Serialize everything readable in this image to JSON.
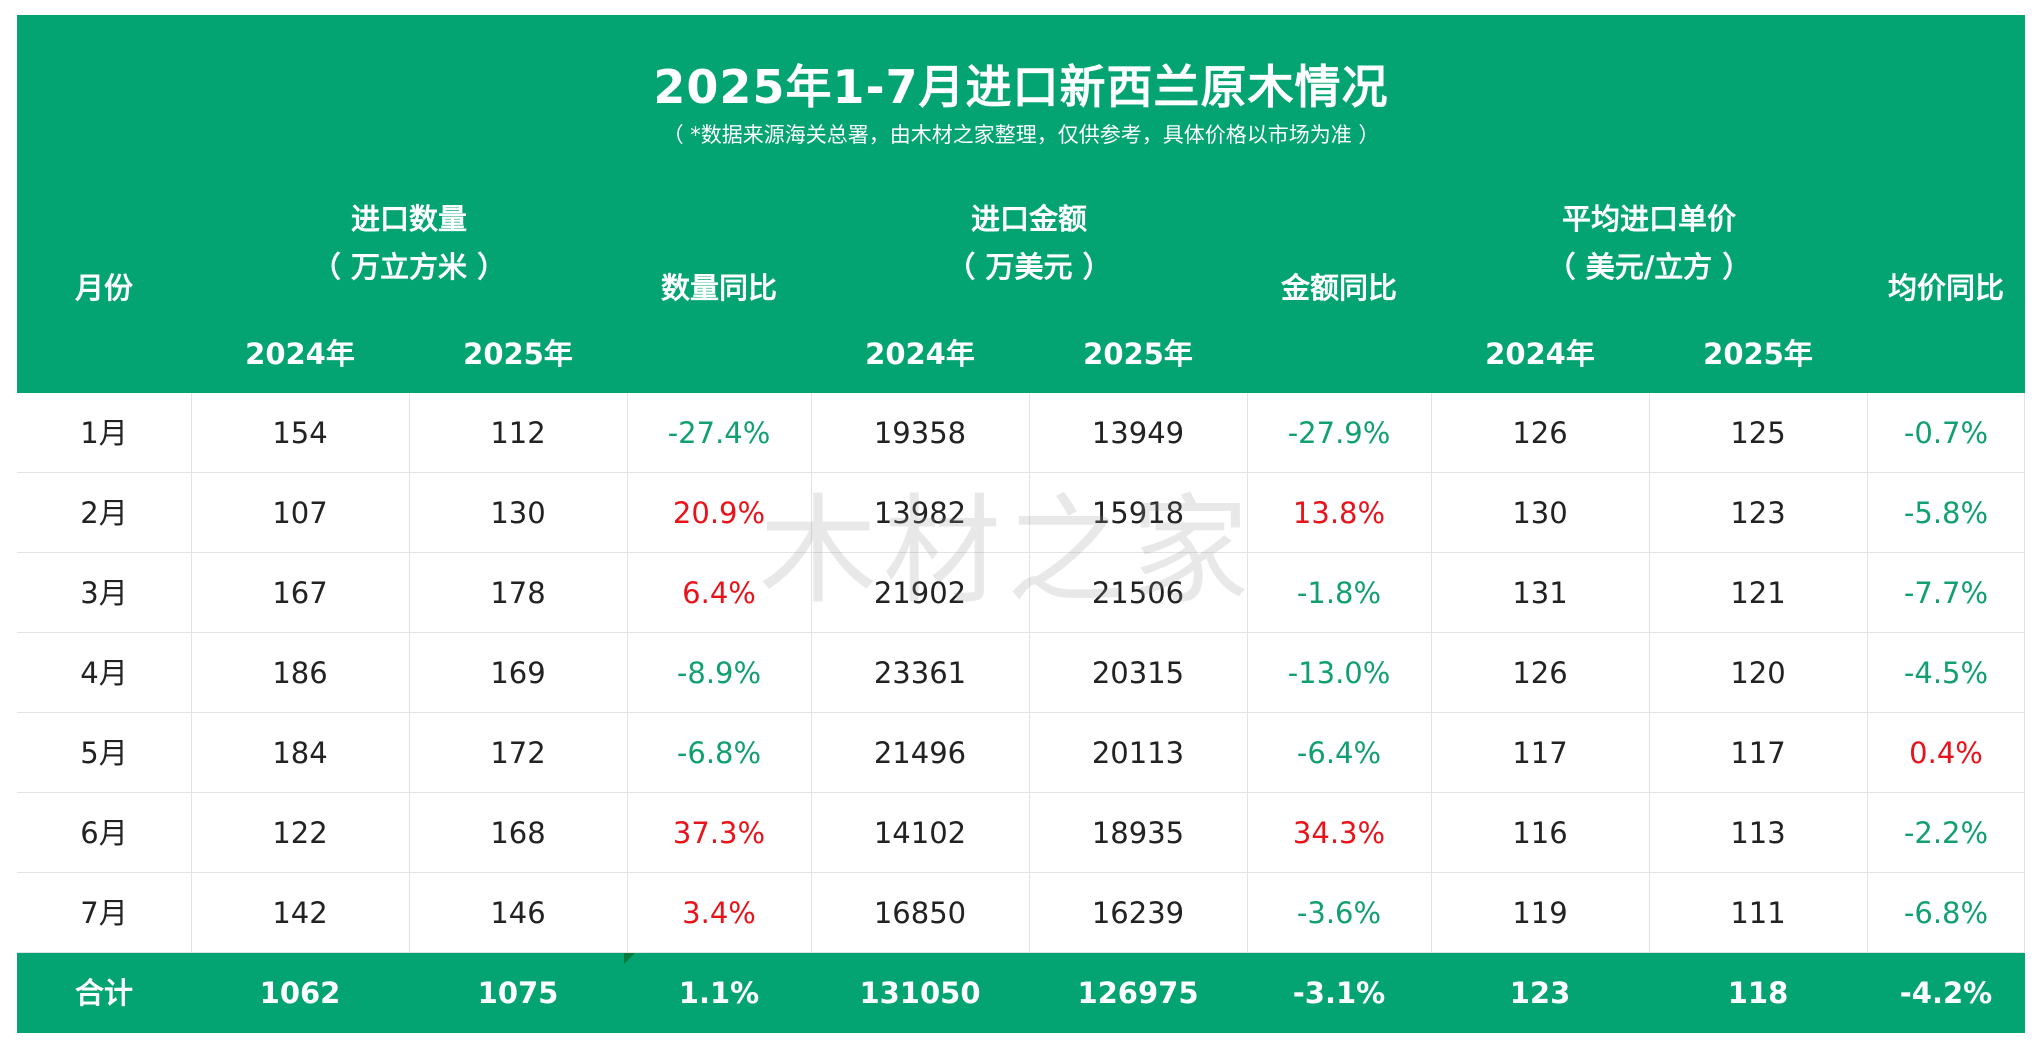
{
  "title": "2025年1-7月进口新西兰原木情况",
  "subtitle": "（ *数据来源海关总署，由木材之家整理，仅供参考，具体价格以市场为准 ）",
  "watermark": "木材之家",
  "colors": {
    "header_bg": "#03a471",
    "negative": "#13a06f",
    "positive": "#e8141b"
  },
  "headers": {
    "month": "月份",
    "qty_group_line1": "进口数量",
    "qty_group_line2": "（ 万立方米 ）",
    "qty_yoy": "数量同比",
    "amt_group_line1": "进口金额",
    "amt_group_line2": "（ 万美元 ）",
    "amt_yoy": "金额同比",
    "price_group_line1": "平均进口单价",
    "price_group_line2": "（ 美元/立方 ）",
    "price_yoy": "均价同比",
    "year_2024": "2024年",
    "year_2025": "2025年"
  },
  "rows": [
    {
      "month": "1月",
      "q2024": "154",
      "q2025": "112",
      "q_yoy": "-27.4%",
      "a2024": "19358",
      "a2025": "13949",
      "a_yoy": "-27.9%",
      "p2024": "126",
      "p2025": "125",
      "p_yoy": "-0.7%"
    },
    {
      "month": "2月",
      "q2024": "107",
      "q2025": "130",
      "q_yoy": "20.9%",
      "a2024": "13982",
      "a2025": "15918",
      "a_yoy": "13.8%",
      "p2024": "130",
      "p2025": "123",
      "p_yoy": "-5.8%"
    },
    {
      "month": "3月",
      "q2024": "167",
      "q2025": "178",
      "q_yoy": "6.4%",
      "a2024": "21902",
      "a2025": "21506",
      "a_yoy": "-1.8%",
      "p2024": "131",
      "p2025": "121",
      "p_yoy": "-7.7%"
    },
    {
      "month": "4月",
      "q2024": "186",
      "q2025": "169",
      "q_yoy": "-8.9%",
      "a2024": "23361",
      "a2025": "20315",
      "a_yoy": "-13.0%",
      "p2024": "126",
      "p2025": "120",
      "p_yoy": "-4.5%"
    },
    {
      "month": "5月",
      "q2024": "184",
      "q2025": "172",
      "q_yoy": "-6.8%",
      "a2024": "21496",
      "a2025": "20113",
      "a_yoy": "-6.4%",
      "p2024": "117",
      "p2025": "117",
      "p_yoy": "0.4%"
    },
    {
      "month": "6月",
      "q2024": "122",
      "q2025": "168",
      "q_yoy": "37.3%",
      "a2024": "14102",
      "a2025": "18935",
      "a_yoy": "34.3%",
      "p2024": "116",
      "p2025": "113",
      "p_yoy": "-2.2%"
    },
    {
      "month": "7月",
      "q2024": "142",
      "q2025": "146",
      "q_yoy": "3.4%",
      "a2024": "16850",
      "a2025": "16239",
      "a_yoy": "-3.6%",
      "p2024": "119",
      "p2025": "111",
      "p_yoy": "-6.8%"
    }
  ],
  "total": {
    "month": "合计",
    "q2024": "1062",
    "q2025": "1075",
    "q_yoy": "1.1%",
    "a2024": "131050",
    "a2025": "126975",
    "a_yoy": "-3.1%",
    "p2024": "123",
    "p2025": "118",
    "p_yoy": "-4.2%"
  }
}
